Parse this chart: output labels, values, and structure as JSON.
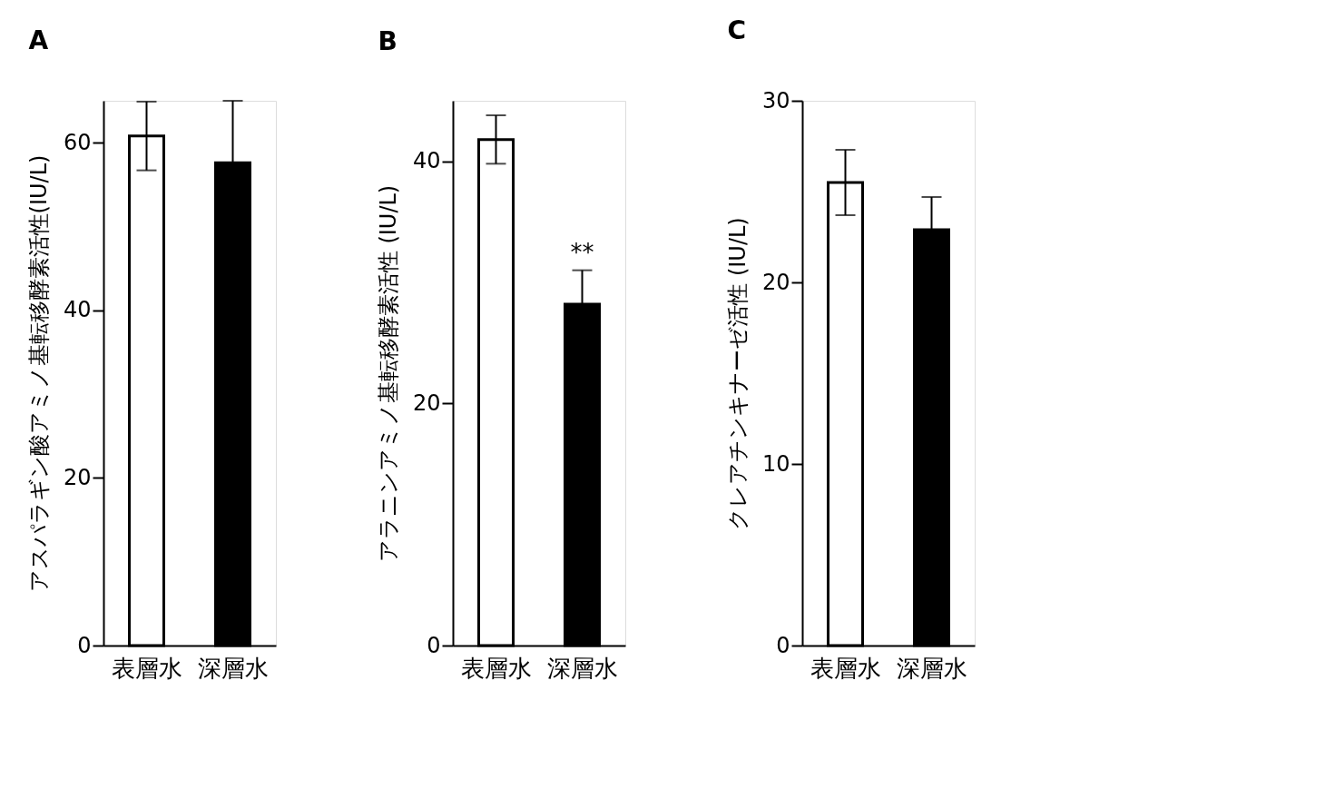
{
  "chart_data": [
    {
      "type": "bar",
      "title": "A",
      "ylabel": "アスパラギン酸アミノ基転移酵素活性(IU/L)",
      "categories": [
        "表層水",
        "深層水"
      ],
      "values": [
        60.8,
        57.6
      ],
      "errors": [
        4.1,
        7.4
      ],
      "colors": [
        "#ffffff",
        "#000000"
      ],
      "ylim": [
        0,
        65
      ],
      "yticks": [
        0,
        20,
        40,
        60
      ],
      "grid": false
    },
    {
      "type": "bar",
      "title": "B",
      "ylabel": "アラニンアミノ基転移酵素活性 (IU/L)",
      "categories": [
        "表層水",
        "深層水"
      ],
      "values": [
        41.8,
        28.2
      ],
      "errors": [
        2.0,
        2.8
      ],
      "colors": [
        "#ffffff",
        "#000000"
      ],
      "ylim": [
        0,
        45
      ],
      "yticks": [
        0,
        20,
        40
      ],
      "grid": false,
      "annotations": [
        {
          "text": "**",
          "x": "深層水",
          "y": 31.0
        }
      ]
    },
    {
      "type": "bar",
      "title": "C",
      "ylabel": "クレアチンキナーゼ活性 (IU/L)",
      "categories": [
        "表層水",
        "深層水"
      ],
      "values": [
        25.5,
        22.9
      ],
      "errors": [
        1.8,
        1.8
      ],
      "colors": [
        "#ffffff",
        "#000000"
      ],
      "ylim": [
        0,
        30
      ],
      "yticks": [
        0,
        10,
        20,
        30
      ],
      "grid": false
    }
  ]
}
